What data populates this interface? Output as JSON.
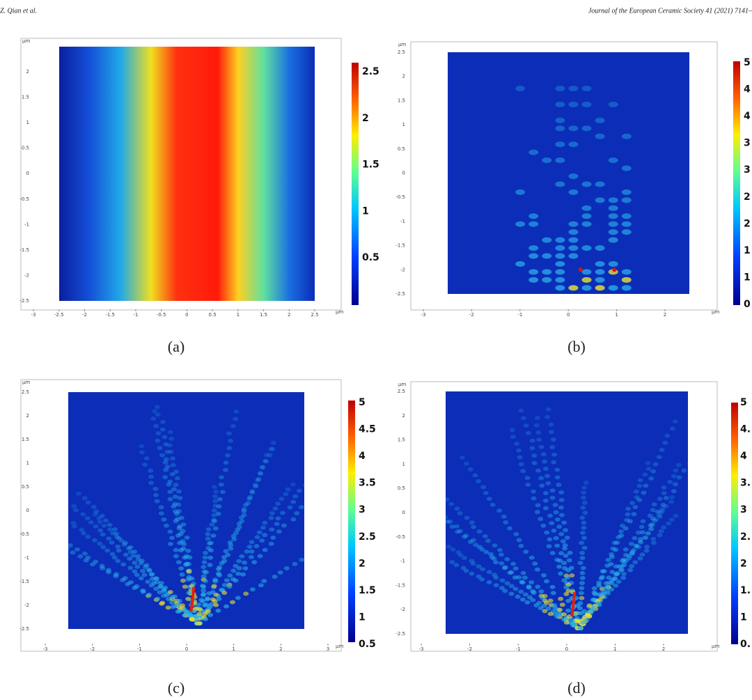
{
  "header": {
    "author": "Z. Qian et al.",
    "journal": "Journal of the European Ceramic Society 41 (2021) 7141–"
  },
  "panels": [
    {
      "caption": "(a)",
      "unit": "μm",
      "xticks": [
        "-3",
        "-2.5",
        "-2",
        "-1.5",
        "-1",
        "-0.5",
        "0",
        "0.5",
        "1",
        "1.5",
        "2",
        "2.5"
      ],
      "yticks": [
        "2",
        "1.5",
        "1",
        "0.5",
        "0",
        "-0.5",
        "-1",
        "-1.5",
        "-2",
        "-2.5"
      ],
      "colorbar": [
        "2.5",
        "2",
        "1.5",
        "1",
        "0.5"
      ]
    },
    {
      "caption": "(b)",
      "unit": "μm",
      "xticks": [
        "-3",
        "-2",
        "-1",
        "0",
        "1",
        "2"
      ],
      "yticks": [
        "2.5",
        "2",
        "1.5",
        "1",
        "0.5",
        "0",
        "-0.5",
        "-1",
        "-1.5",
        "-2",
        "-2.5"
      ],
      "colorbar": [
        "5",
        "4",
        "4",
        "3",
        "3",
        "2",
        "2",
        "1",
        "1",
        "0"
      ]
    },
    {
      "caption": "(c)",
      "unit": "μm",
      "xticks": [
        "-3",
        "-2",
        "-1",
        "0",
        "1",
        "2",
        "3"
      ],
      "yticks": [
        "2.5",
        "2",
        "1.5",
        "1",
        "0.5",
        "0",
        "-0.5",
        "-1",
        "-1.5",
        "-2",
        "-2.5"
      ],
      "colorbar": [
        "5",
        "4.5",
        "4",
        "3.5",
        "3",
        "2.5",
        "2",
        "1.5",
        "1",
        "0.5"
      ]
    },
    {
      "caption": "(d)",
      "unit": "μm",
      "xticks": [
        "-3",
        "-2",
        "-1",
        "0",
        "1",
        "2"
      ],
      "yticks": [
        "2.5",
        "2",
        "1.5",
        "1",
        "0.5",
        "0",
        "-0.5",
        "-1",
        "-1.5",
        "-2",
        "-2.5"
      ],
      "colorbar": [
        "5",
        "4.",
        "4",
        "3.",
        "3",
        "2.",
        "2",
        "1.",
        "1",
        "0."
      ]
    }
  ]
}
